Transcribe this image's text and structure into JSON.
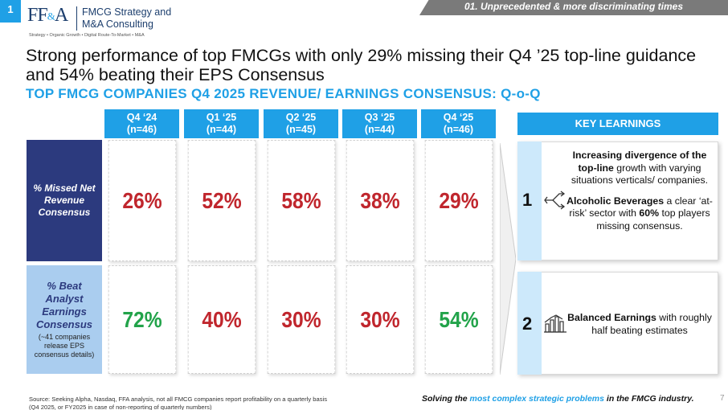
{
  "slide_number": "1",
  "logo": {
    "mark_left": "FF",
    "mark_amp": "&",
    "mark_right": "A",
    "name": "FMCG Strategy and\nM&A Consulting",
    "tagline": "Strategy • Organic Growth • Digital Route-To-Market • M&A"
  },
  "section_tab": "01. Unprecedented & more discriminating times",
  "title": "Strong performance of top FMCGs with only 29% missing their Q4 ’25 top-line guidance and 54% beating their EPS Consensus",
  "subtitle": "TOP FMCG COMPANIES Q4 2025 REVENUE/ EARNINGS CONSENSUS: Q-o-Q",
  "columns": [
    {
      "period": "Q4 ‘24",
      "n": "(n=46)"
    },
    {
      "period": "Q1 ‘25",
      "n": "(n=44)"
    },
    {
      "period": "Q2 ‘25",
      "n": "(n=45)"
    },
    {
      "period": "Q3 ‘25",
      "n": "(n=44)"
    },
    {
      "period": "Q4 ‘25",
      "n": "(n=46)"
    }
  ],
  "rows": [
    {
      "label": "% Missed Net Revenue Consensus",
      "values": [
        "26%",
        "52%",
        "58%",
        "38%",
        "29%"
      ]
    },
    {
      "label": "% Beat Analyst Earnings Consensus",
      "note": "(~41 companies release EPS consensus details)",
      "values": [
        "72%",
        "40%",
        "30%",
        "30%",
        "54%"
      ]
    }
  ],
  "key_learnings": {
    "header": "KEY LEARNINGS",
    "items": [
      {
        "number": "1",
        "icon": "diverging-arrows-icon",
        "p1_bold": "Increasing divergence of the top-line",
        "p1_rest": " growth with varying situations verticals/ companies.",
        "p2_bold": "Alcoholic Beverages",
        "p2_mid": " a clear ‘at-risk’ sector with ",
        "p2_bold2": "60%",
        "p2_rest": " top players missing consensus."
      },
      {
        "number": "2",
        "icon": "balance-chart-icon",
        "p1_bold": "Balanced Earnings",
        "p1_rest": " with roughly half beating estimates"
      }
    ]
  },
  "source": "Source: Seeking Alpha, Nasdaq, FFA analysis, not all FMCG companies report profitability on a quarterly basis (Q4 2025, or FY2025 in case of non-reporting of quarterly numbers)",
  "footer": {
    "pre": "Solving the ",
    "highlight": "most complex strategic problems",
    "post": " in the FMCG industry."
  },
  "page_number": "7",
  "colors": {
    "accent": "#1fa0e6",
    "navy": "#2c3a7e",
    "red": "#c0262d",
    "green": "#22a34a"
  }
}
